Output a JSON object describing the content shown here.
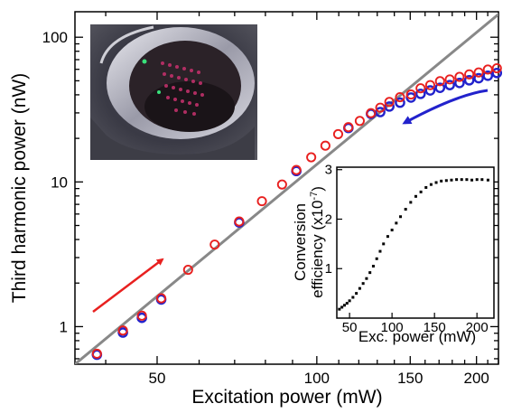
{
  "chart_data": [
    {
      "type": "scatter",
      "xlabel": "Excitation power (mW)",
      "ylabel": "Third harmonic power (nW)",
      "xscale": "log",
      "yscale": "log",
      "xlim": [
        35,
        220
      ],
      "ylim": [
        0.55,
        150
      ],
      "xticks": [
        {
          "value": 50,
          "label": "50"
        },
        {
          "value": 100,
          "label": "100"
        },
        {
          "value": 150,
          "label": "150"
        },
        {
          "value": 200,
          "label": "200"
        }
      ],
      "yticks": [
        {
          "value": 1,
          "label": "1"
        },
        {
          "value": 10,
          "label": "10"
        },
        {
          "value": 100,
          "label": "100"
        }
      ],
      "series": [
        {
          "color": "#e8201f",
          "marker": "open-circle",
          "points": [
            [
              38.5,
              0.65
            ],
            [
              43.1,
              0.94
            ],
            [
              46.8,
              1.19
            ],
            [
              50.9,
              1.57
            ],
            [
              57.2,
              2.47
            ],
            [
              64.2,
              3.69
            ],
            [
              71.4,
              5.33
            ],
            [
              78.8,
              7.36
            ],
            [
              86.0,
              9.6
            ],
            [
              91.5,
              12.1
            ],
            [
              97.6,
              14.8
            ],
            [
              103.8,
              17.8
            ],
            [
              109.7,
              21.4
            ],
            [
              114.7,
              23.9
            ],
            [
              120.5,
              26.4
            ],
            [
              126.5,
              29.9
            ],
            [
              131.7,
              32.6
            ],
            [
              137.0,
              35.7
            ],
            [
              143.5,
              38.5
            ],
            [
              150.5,
              40.2
            ],
            [
              156.9,
              44.4
            ],
            [
              163.6,
              46.7
            ],
            [
              170.7,
              49.7
            ],
            [
              178.1,
              51.1
            ],
            [
              185.8,
              53.2
            ],
            [
              193.8,
              55.4
            ],
            [
              201.9,
              57.1
            ],
            [
              210.1,
              59.8
            ],
            [
              218.5,
              61.0
            ]
          ]
        },
        {
          "color": "#2222cc",
          "marker": "open-circle",
          "points": [
            [
              38.5,
              0.64
            ],
            [
              43.1,
              0.91
            ],
            [
              46.8,
              1.15
            ],
            [
              50.9,
              1.54
            ],
            [
              71.4,
              5.25
            ],
            [
              91.5,
              11.9
            ],
            [
              114.7,
              23.6
            ],
            [
              126.5,
              29.5
            ],
            [
              131.7,
              30.4
            ],
            [
              137.0,
              33.2
            ],
            [
              143.5,
              35.3
            ],
            [
              150.5,
              38.3
            ],
            [
              156.9,
              40.6
            ],
            [
              163.6,
              42.9
            ],
            [
              170.7,
              44.7
            ],
            [
              178.1,
              46.7
            ],
            [
              185.8,
              48.3
            ],
            [
              193.8,
              50.4
            ],
            [
              201.9,
              52.1
            ],
            [
              210.1,
              54.2
            ],
            [
              218.5,
              56.6
            ]
          ]
        }
      ],
      "fit_line": {
        "color": "#888888",
        "points": [
          [
            35,
            0.55
          ],
          [
            223,
            150
          ]
        ]
      },
      "annotations": [
        {
          "type": "arrow",
          "color": "#e8201f",
          "meaning": "increasing power"
        },
        {
          "type": "arrow",
          "color": "#2222cc",
          "meaning": "decreasing power"
        }
      ]
    },
    {
      "type": "scatter",
      "inset": true,
      "xlabel": "Exc. power (mW)",
      "ylabel_lines": [
        "Conversion",
        "efficiency (x10",
        "-7",
        ")"
      ],
      "xlim": [
        35,
        220
      ],
      "ylim": [
        0,
        3.05
      ],
      "xticks": [
        {
          "value": 50,
          "label": "50"
        },
        {
          "value": 100,
          "label": "100"
        },
        {
          "value": 150,
          "label": "150"
        },
        {
          "value": 200,
          "label": "200"
        }
      ],
      "yticks": [
        {
          "value": 1,
          "label": "1"
        },
        {
          "value": 2,
          "label": "2"
        },
        {
          "value": 3,
          "label": "3"
        }
      ],
      "series": [
        {
          "color": "#000000",
          "marker": "filled-square",
          "points": [
            [
              38,
              0.18
            ],
            [
              41,
              0.22
            ],
            [
              44,
              0.26
            ],
            [
              47,
              0.3
            ],
            [
              50,
              0.35
            ],
            [
              54,
              0.42
            ],
            [
              58,
              0.5
            ],
            [
              62,
              0.6
            ],
            [
              66,
              0.7
            ],
            [
              70,
              0.8
            ],
            [
              74,
              0.92
            ],
            [
              78,
              1.05
            ],
            [
              82,
              1.2
            ],
            [
              86,
              1.35
            ],
            [
              90,
              1.5
            ],
            [
              95,
              1.65
            ],
            [
              100,
              1.78
            ],
            [
              105,
              1.92
            ],
            [
              110,
              2.05
            ],
            [
              116,
              2.2
            ],
            [
              122,
              2.34
            ],
            [
              128,
              2.46
            ],
            [
              134,
              2.55
            ],
            [
              140,
              2.64
            ],
            [
              146,
              2.7
            ],
            [
              152,
              2.74
            ],
            [
              158,
              2.77
            ],
            [
              164,
              2.78
            ],
            [
              170,
              2.79
            ],
            [
              176,
              2.8
            ],
            [
              182,
              2.8
            ],
            [
              188,
              2.8
            ],
            [
              194,
              2.79
            ],
            [
              200,
              2.8
            ],
            [
              206,
              2.8
            ],
            [
              213,
              2.79
            ]
          ]
        }
      ]
    }
  ],
  "photo": {
    "description_icon": "photo-image"
  }
}
